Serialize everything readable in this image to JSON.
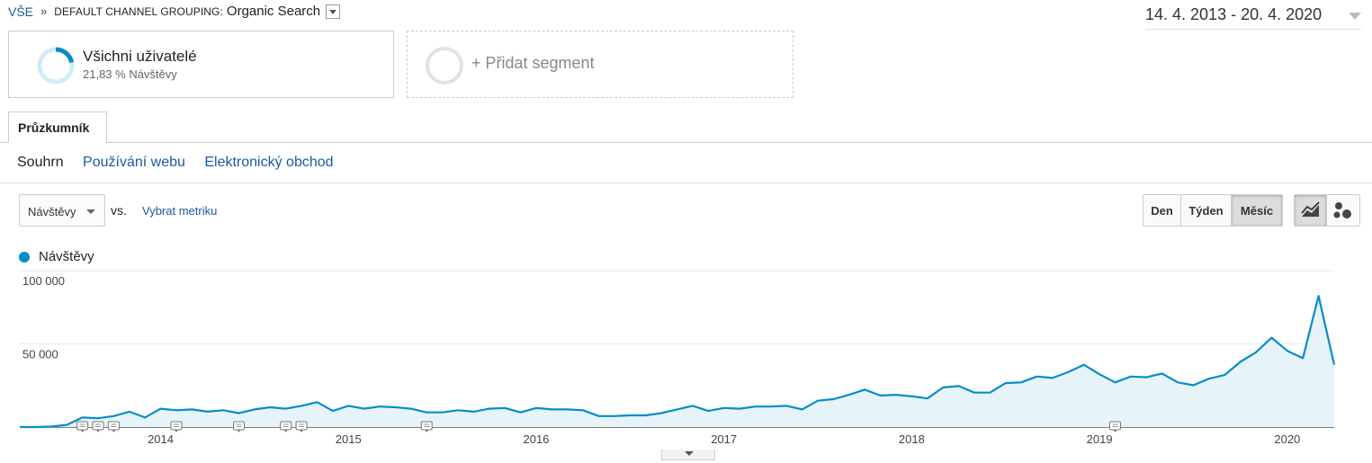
{
  "breadcrumb": {
    "root": "VŠE",
    "separator": "»",
    "dimension": "DEFAULT CHANNEL GROUPING:",
    "value": "Organic Search"
  },
  "date_range": "14. 4. 2013 - 20. 4. 2020",
  "segments": {
    "active": {
      "title": "Všichni uživatelé",
      "subtitle": "21,83 % Návštěvy",
      "share": 0.2183
    },
    "add_label": "+ Přidat segment"
  },
  "tabs": [
    {
      "label": "Průzkumník"
    }
  ],
  "subnav": {
    "items": [
      "Souhrn",
      "Používání webu",
      "Elektronický obchod"
    ]
  },
  "controls": {
    "metric": "Návštěvy",
    "vs": "vs.",
    "choose_metric": "Vybrat metriku",
    "periods": [
      "Den",
      "Týden",
      "Měsíc"
    ],
    "active_period": "Měsíc"
  },
  "colors": {
    "accent": "#058dc7",
    "area": "#e6f4fa",
    "link": "#1a5a9e"
  },
  "chart_data": {
    "type": "area",
    "series": [
      {
        "name": "Návštěvy",
        "values": [
          0,
          0,
          300,
          1500,
          6500,
          6000,
          7500,
          10500,
          6500,
          12500,
          11500,
          12000,
          10500,
          11500,
          9500,
          12000,
          13500,
          12500,
          14500,
          17000,
          11000,
          14500,
          12500,
          14000,
          13500,
          12500,
          10000,
          10000,
          11500,
          10500,
          12500,
          13000,
          10000,
          13000,
          12000,
          12000,
          11500,
          7500,
          7500,
          8000,
          8000,
          9500,
          12000,
          14500,
          11000,
          13000,
          12500,
          14000,
          14000,
          14500,
          12000,
          18000,
          19000,
          22000,
          25500,
          21500,
          22000,
          21000,
          19500,
          27000,
          28000,
          23500,
          23500,
          30000,
          30500,
          34500,
          33500,
          37500,
          42500,
          36000,
          30500,
          34500,
          34000,
          36500,
          30500,
          28500,
          33000,
          35500,
          44500,
          51000,
          61000,
          52000,
          47000,
          89500,
          42500
        ]
      }
    ],
    "x_start": "2013-04",
    "x_end": "2020-04",
    "x_ticks": [
      "2014",
      "2015",
      "2016",
      "2017",
      "2018",
      "2019",
      "2020"
    ],
    "y_ticks": [
      "100 000",
      "50 000"
    ],
    "ylim": [
      0,
      100000
    ],
    "annotations_months": [
      "2013-08",
      "2013-09",
      "2013-10",
      "2014-02",
      "2014-06",
      "2014-09",
      "2014-10",
      "2015-06",
      "2019-02"
    ],
    "legend": "top-left",
    "grid": true
  }
}
